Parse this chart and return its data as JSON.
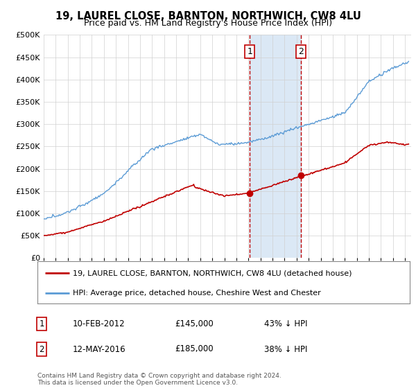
{
  "title": "19, LAUREL CLOSE, BARNTON, NORTHWICH, CW8 4LU",
  "subtitle": "Price paid vs. HM Land Registry's House Price Index (HPI)",
  "ylabel_ticks": [
    "£0",
    "£50K",
    "£100K",
    "£150K",
    "£200K",
    "£250K",
    "£300K",
    "£350K",
    "£400K",
    "£450K",
    "£500K"
  ],
  "ytick_values": [
    0,
    50000,
    100000,
    150000,
    200000,
    250000,
    300000,
    350000,
    400000,
    450000,
    500000
  ],
  "ylim": [
    0,
    500000
  ],
  "xlim_start": 1995.0,
  "xlim_end": 2025.5,
  "hpi_color": "#5b9bd5",
  "price_color": "#c00000",
  "sale1_date": 2012.11,
  "sale1_price": 145000,
  "sale2_date": 2016.37,
  "sale2_price": 185000,
  "legend_line1": "19, LAUREL CLOSE, BARNTON, NORTHWICH, CW8 4LU (detached house)",
  "legend_line2": "HPI: Average price, detached house, Cheshire West and Chester",
  "table_row1_label": "1",
  "table_row1_date": "10-FEB-2012",
  "table_row1_price": "£145,000",
  "table_row1_hpi": "43% ↓ HPI",
  "table_row2_label": "2",
  "table_row2_date": "12-MAY-2016",
  "table_row2_price": "£185,000",
  "table_row2_hpi": "38% ↓ HPI",
  "footnote": "Contains HM Land Registry data © Crown copyright and database right 2024.\nThis data is licensed under the Open Government Licence v3.0.",
  "background_color": "#ffffff",
  "plot_bg_color": "#ffffff",
  "shade_color": "#dbe8f5",
  "grid_color": "#d0d0d0"
}
